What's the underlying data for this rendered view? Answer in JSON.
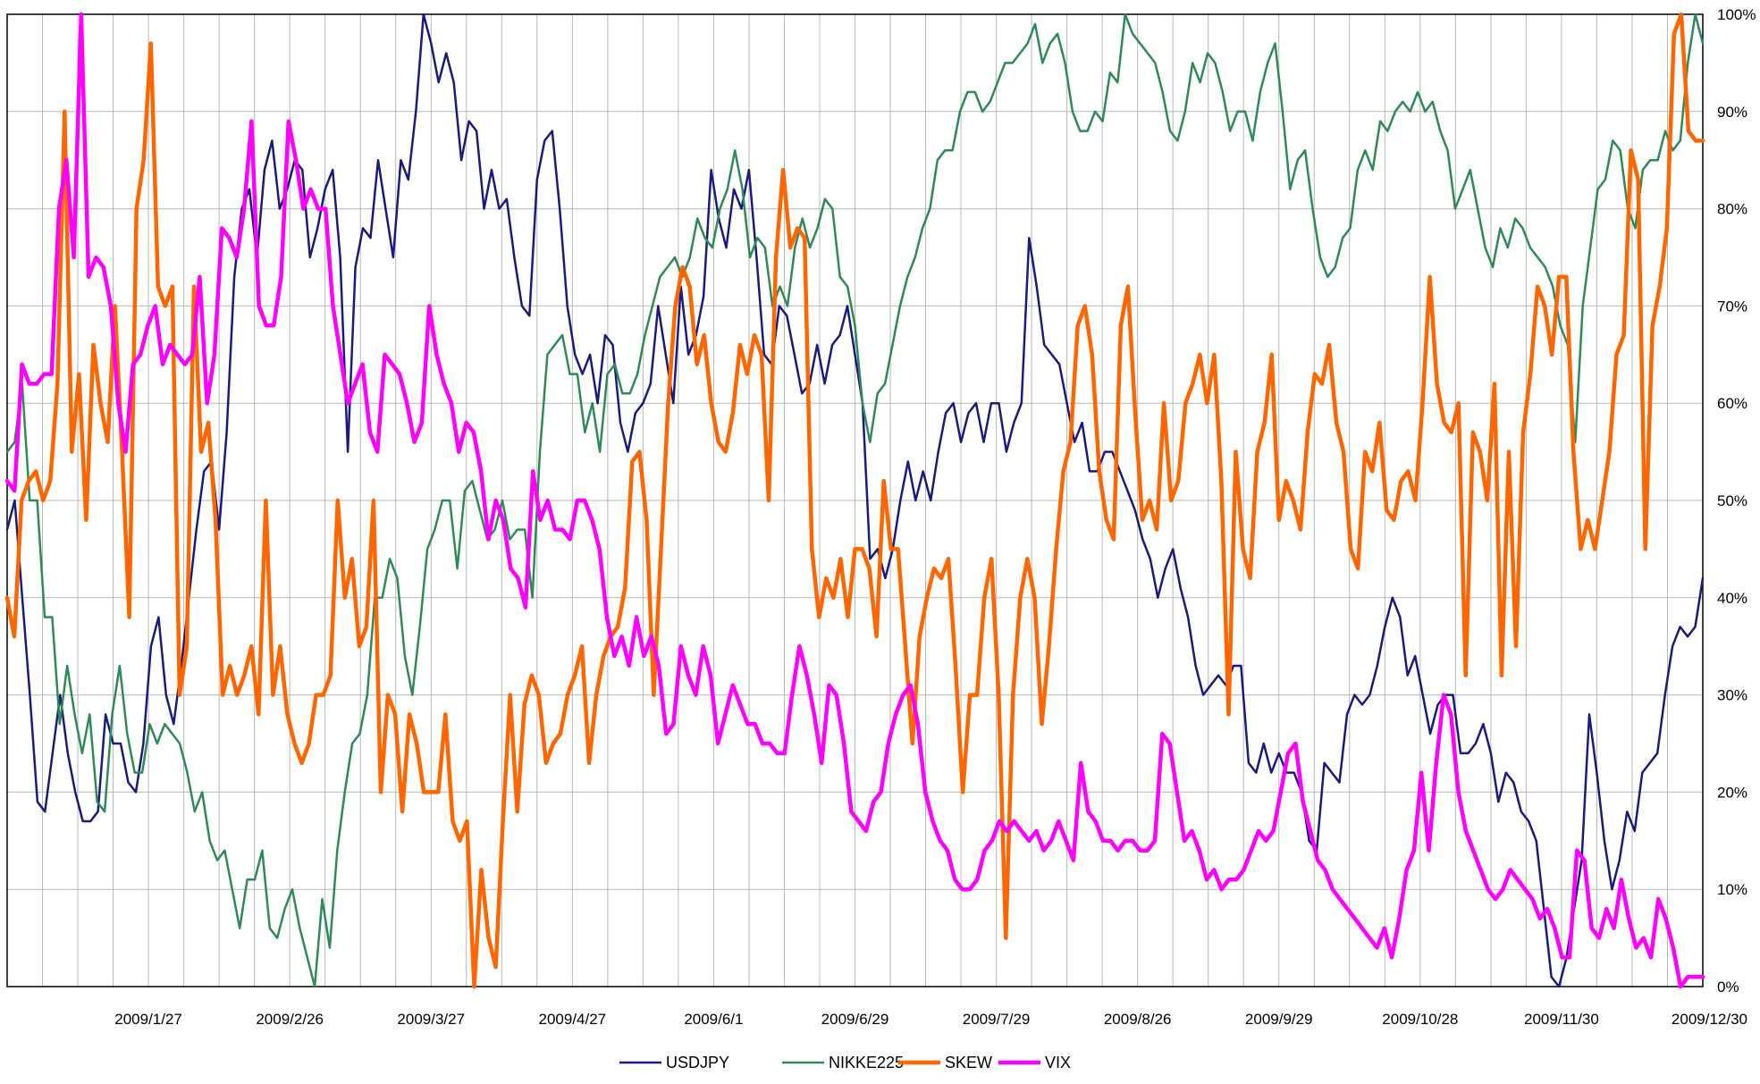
{
  "chart_data": {
    "type": "line",
    "title": "",
    "xlabel": "",
    "ylabel": "",
    "ylim": [
      0,
      100
    ],
    "y_ticks": [
      "0%",
      "10%",
      "20%",
      "30%",
      "40%",
      "50%",
      "60%",
      "70%",
      "80%",
      "90%",
      "100%"
    ],
    "y_axis_side": "right",
    "x_tick_labels": [
      "2009/1/27",
      "2009/2/26",
      "2009/3/27",
      "2009/4/27",
      "2009/6/1",
      "2009/6/29",
      "2009/7/29",
      "2009/8/26",
      "2009/9/29",
      "2009/10/28",
      "2009/11/30",
      "2009/12/30"
    ],
    "grid": true,
    "legend": "bottom",
    "series": [
      {
        "name": "USDJPY",
        "color": "#1a1a80",
        "values": [
          47,
          50,
          40,
          30,
          19,
          18,
          24,
          30,
          24,
          20,
          17,
          17,
          18,
          28,
          25,
          25,
          21,
          20,
          25,
          35,
          38,
          30,
          27,
          33,
          40,
          47,
          53,
          54,
          47,
          57,
          73,
          80,
          82,
          75,
          84,
          87,
          80,
          82,
          85,
          84,
          75,
          78,
          82,
          84,
          75,
          55,
          74,
          78,
          77,
          85,
          80,
          75,
          85,
          83,
          90,
          100,
          97,
          93,
          96,
          93,
          85,
          89,
          88,
          80,
          84,
          80,
          81,
          75,
          70,
          69,
          83,
          87,
          88,
          80,
          70,
          65,
          63,
          65,
          60,
          67,
          66,
          58,
          55,
          59,
          60,
          62,
          70,
          65,
          60,
          72,
          65,
          67,
          71,
          84,
          79,
          76,
          82,
          80,
          84,
          75,
          65,
          64,
          70,
          69,
          65,
          61,
          62,
          66,
          62,
          66,
          67,
          70,
          65,
          60,
          44,
          45,
          42,
          45,
          50,
          54,
          50,
          53,
          50,
          55,
          59,
          60,
          56,
          59,
          60,
          56,
          60,
          60,
          55,
          58,
          60,
          77,
          72,
          66,
          65,
          64,
          60,
          56,
          58,
          53,
          53,
          55,
          55,
          53,
          51,
          49,
          46,
          44,
          40,
          43,
          45,
          41,
          38,
          33,
          30,
          31,
          32,
          31,
          33,
          33,
          23,
          22,
          25,
          22,
          24,
          22,
          22,
          20,
          15,
          14,
          23,
          22,
          21,
          28,
          30,
          29,
          30,
          33,
          37,
          40,
          38,
          32,
          34,
          30,
          26,
          29,
          30,
          30,
          24,
          24,
          25,
          27,
          24,
          19,
          22,
          21,
          18,
          17,
          15,
          8,
          1,
          0,
          3,
          8,
          13,
          28,
          22,
          15,
          10,
          13,
          18,
          16,
          22,
          23,
          24,
          30,
          35,
          37,
          36,
          37,
          42
        ]
      },
      {
        "name": "NIKKE225",
        "color": "#2e8b57",
        "values": [
          55,
          56,
          62,
          50,
          50,
          38,
          38,
          27,
          33,
          28,
          24,
          28,
          19,
          18,
          28,
          33,
          26,
          22,
          22,
          27,
          25,
          27,
          26,
          25,
          22,
          18,
          20,
          15,
          13,
          14,
          10,
          6,
          11,
          11,
          14,
          6,
          5,
          8,
          10,
          6,
          3,
          0,
          9,
          4,
          14,
          20,
          25,
          26,
          30,
          40,
          40,
          44,
          42,
          34,
          30,
          37,
          45,
          47,
          50,
          50,
          43,
          51,
          52,
          49,
          46,
          47,
          50,
          46,
          47,
          47,
          40,
          55,
          65,
          66,
          67,
          63,
          63,
          57,
          60,
          55,
          63,
          64,
          61,
          61,
          63,
          67,
          70,
          73,
          74,
          75,
          73,
          75,
          79,
          77,
          76,
          80,
          82,
          86,
          82,
          75,
          77,
          76,
          70,
          72,
          70,
          76,
          79,
          76,
          78,
          81,
          80,
          73,
          72,
          68,
          60,
          56,
          61,
          62,
          66,
          70,
          73,
          75,
          78,
          80,
          85,
          86,
          86,
          90,
          92,
          92,
          90,
          91,
          93,
          95,
          95,
          96,
          97,
          99,
          95,
          97,
          98,
          95,
          90,
          88,
          88,
          90,
          89,
          94,
          93,
          100,
          98,
          97,
          96,
          95,
          92,
          88,
          87,
          90,
          95,
          93,
          96,
          95,
          92,
          88,
          90,
          90,
          87,
          92,
          95,
          97,
          90,
          82,
          85,
          86,
          80,
          75,
          73,
          74,
          77,
          78,
          84,
          86,
          84,
          89,
          88,
          90,
          91,
          90,
          92,
          90,
          91,
          88,
          86,
          80,
          82,
          84,
          80,
          76,
          74,
          78,
          76,
          79,
          78,
          76,
          75,
          74,
          72,
          68,
          66,
          56,
          70,
          76,
          82,
          83,
          87,
          86,
          80,
          78,
          84,
          85,
          85,
          88,
          86,
          87,
          95,
          100,
          97
        ]
      },
      {
        "name": "SKEW",
        "color": "#ff6600",
        "values": [
          40,
          36,
          50,
          52,
          53,
          50,
          52,
          62,
          90,
          55,
          63,
          48,
          66,
          60,
          56,
          70,
          55,
          38,
          80,
          85,
          97,
          72,
          70,
          72,
          30,
          35,
          72,
          55,
          58,
          48,
          30,
          33,
          30,
          32,
          35,
          28,
          50,
          30,
          35,
          28,
          25,
          23,
          25,
          30,
          30,
          32,
          50,
          40,
          44,
          35,
          37,
          50,
          20,
          30,
          28,
          18,
          28,
          25,
          20,
          20,
          20,
          28,
          17,
          15,
          17,
          0,
          12,
          5,
          2,
          17,
          30,
          18,
          29,
          32,
          30,
          23,
          25,
          26,
          30,
          32,
          35,
          23,
          30,
          34,
          36,
          37,
          41,
          54,
          55,
          48,
          30,
          45,
          60,
          70,
          74,
          72,
          64,
          67,
          60,
          56,
          55,
          59,
          66,
          63,
          67,
          65,
          50,
          75,
          84,
          76,
          78,
          77,
          45,
          38,
          42,
          40,
          44,
          38,
          45,
          45,
          43,
          36,
          52,
          45,
          45,
          35,
          25,
          36,
          40,
          43,
          42,
          44,
          33,
          20,
          30,
          30,
          40,
          44,
          30,
          5,
          30,
          40,
          44,
          40,
          27,
          35,
          45,
          53,
          56,
          68,
          70,
          65,
          53,
          48,
          46,
          68,
          72,
          59,
          48,
          50,
          47,
          60,
          50,
          52,
          60,
          62,
          65,
          60,
          65,
          52,
          28,
          55,
          45,
          42,
          55,
          58,
          65,
          48,
          52,
          50,
          47,
          57,
          63,
          62,
          66,
          58,
          55,
          45,
          43,
          55,
          53,
          58,
          49,
          48,
          52,
          53,
          50,
          60,
          73,
          62,
          58,
          57,
          60,
          32,
          57,
          55,
          50,
          62,
          32,
          55,
          35,
          57,
          63,
          72,
          70,
          65,
          73,
          73,
          55,
          45,
          48,
          45,
          50,
          55,
          65,
          67,
          86,
          83,
          45,
          68,
          72,
          78,
          98,
          100,
          88,
          87,
          87
        ]
      },
      {
        "name": "VIX",
        "color": "#ff00ff",
        "values": [
          52,
          51,
          64,
          62,
          62,
          63,
          63,
          80,
          85,
          75,
          100,
          73,
          75,
          74,
          70,
          60,
          55,
          64,
          65,
          68,
          70,
          64,
          66,
          65,
          64,
          65,
          73,
          60,
          65,
          78,
          77,
          75,
          80,
          89,
          70,
          68,
          68,
          73,
          89,
          85,
          80,
          82,
          80,
          80,
          70,
          65,
          60,
          62,
          64,
          57,
          55,
          65,
          64,
          63,
          60,
          56,
          58,
          70,
          65,
          62,
          60,
          55,
          58,
          57,
          53,
          46,
          50,
          48,
          43,
          42,
          39,
          53,
          48,
          50,
          47,
          47,
          46,
          50,
          50,
          48,
          45,
          38,
          34,
          36,
          33,
          38,
          34,
          36,
          33,
          26,
          27,
          35,
          32,
          30,
          35,
          32,
          25,
          28,
          31,
          29,
          27,
          27,
          25,
          25,
          24,
          24,
          30,
          35,
          32,
          28,
          23,
          31,
          30,
          25,
          18,
          17,
          16,
          19,
          20,
          25,
          28,
          30,
          31,
          27,
          20,
          17,
          15,
          14,
          11,
          10,
          10,
          11,
          14,
          15,
          17,
          16,
          17,
          16,
          15,
          16,
          14,
          15,
          17,
          15,
          13,
          23,
          18,
          17,
          15,
          15,
          14,
          15,
          15,
          14,
          14,
          15,
          26,
          25,
          20,
          15,
          16,
          14,
          11,
          12,
          10,
          11,
          11,
          12,
          14,
          16,
          15,
          16,
          20,
          24,
          25,
          19,
          16,
          13,
          12,
          10,
          9,
          8,
          7,
          6,
          5,
          4,
          6,
          3,
          7,
          12,
          14,
          22,
          14,
          23,
          30,
          28,
          20,
          16,
          14,
          12,
          10,
          9,
          10,
          12,
          11,
          10,
          9,
          7,
          8,
          6,
          3,
          3,
          14,
          13,
          6,
          5,
          8,
          6,
          11,
          7,
          4,
          5,
          3,
          9,
          7,
          4,
          0,
          1,
          1,
          1
        ]
      }
    ]
  }
}
